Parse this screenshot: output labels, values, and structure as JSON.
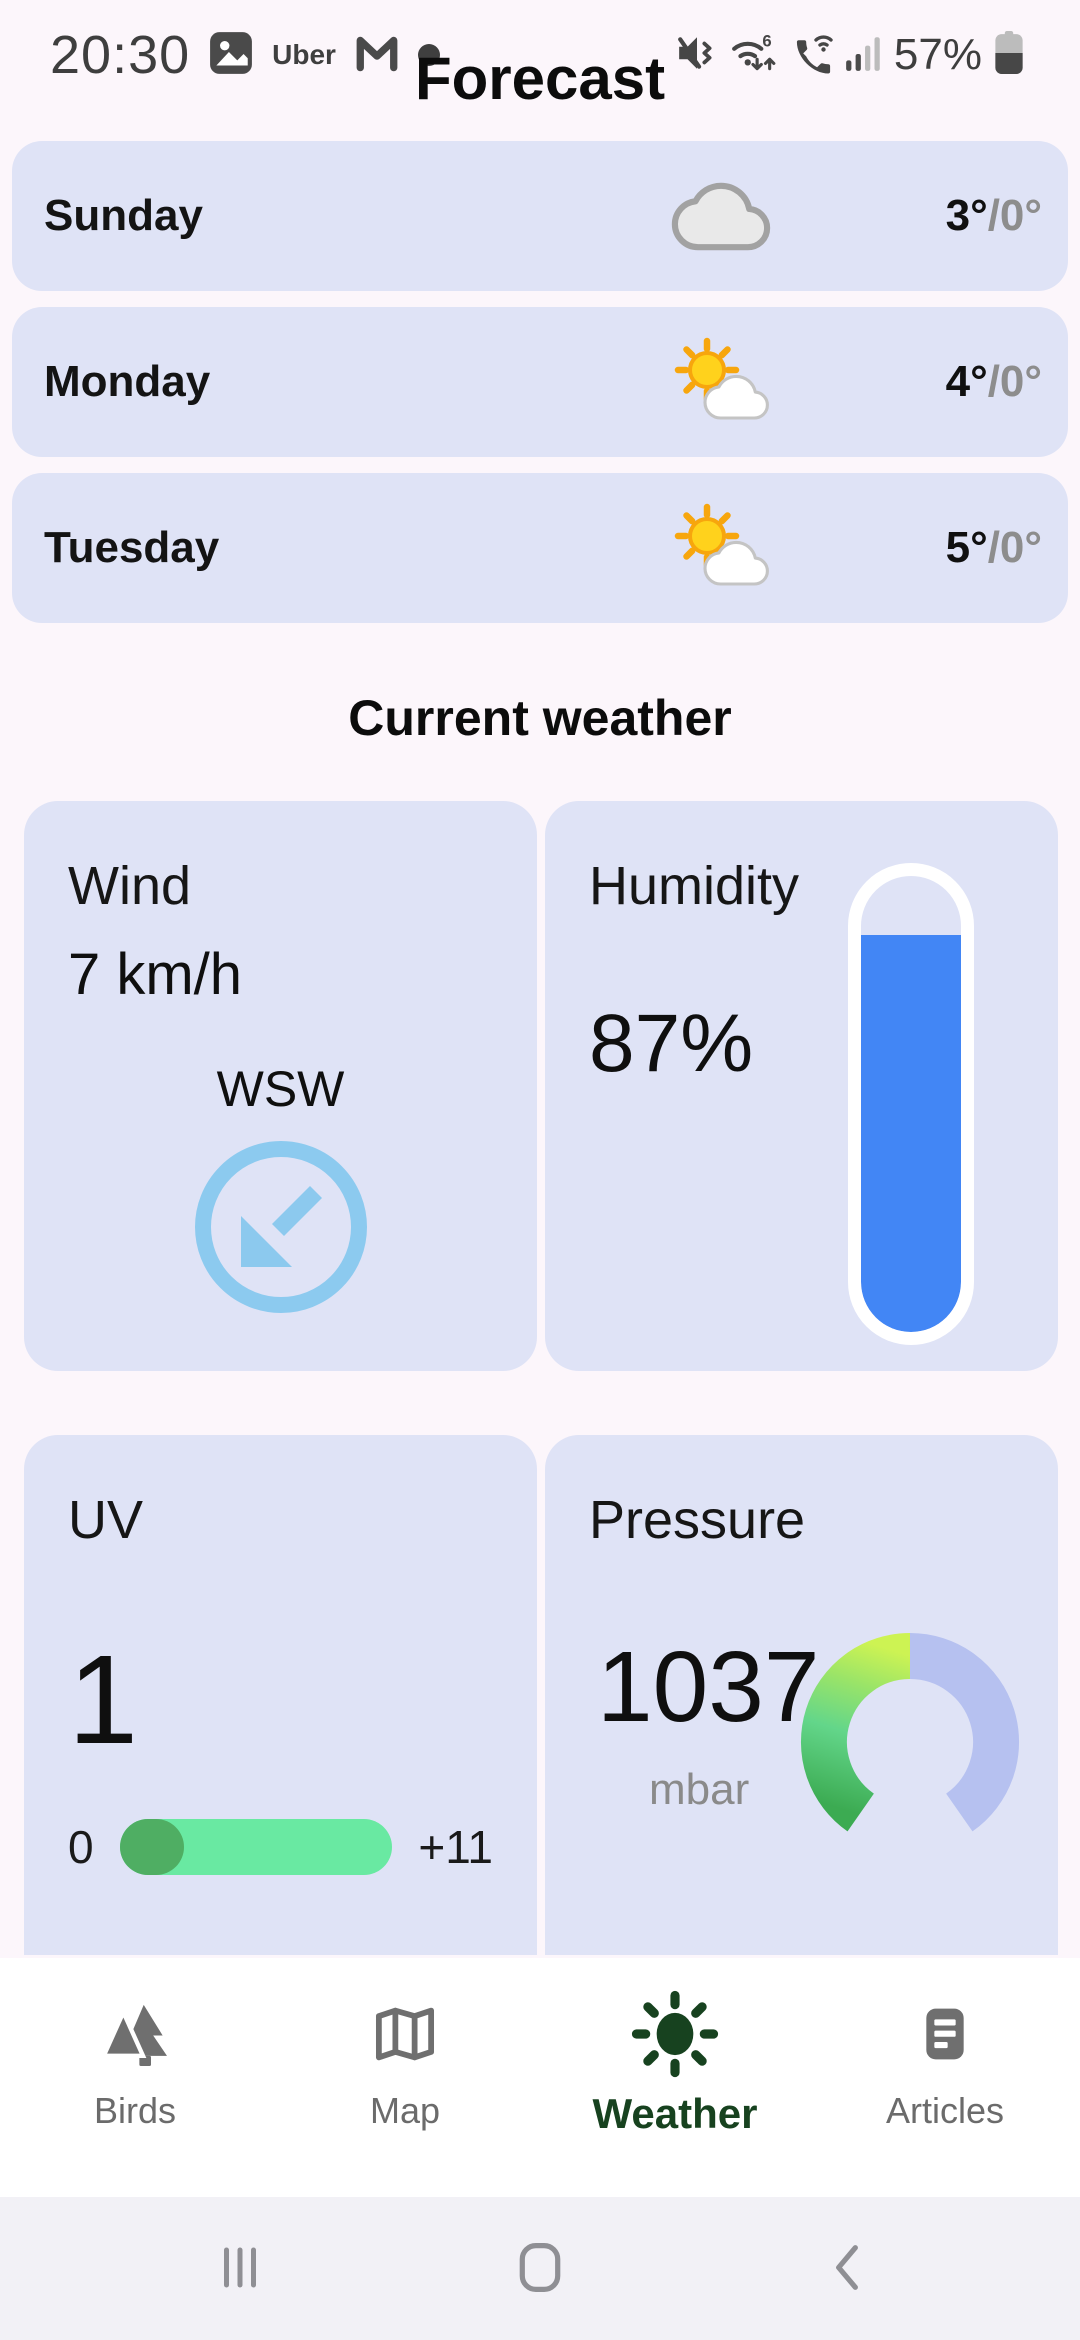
{
  "status_bar": {
    "time": "20:30",
    "uber_label": "Uber",
    "gmail_label": "M",
    "battery_text": "57%",
    "icons_left": [
      "photos-icon",
      "uber-label",
      "gmail-icon",
      "notification-dot"
    ],
    "icons_right": [
      "mute-vibrate-icon",
      "wifi-6-icon",
      "wifi-calling-icon",
      "signal-icon",
      "battery-icon"
    ]
  },
  "header": {
    "title": "Forecast"
  },
  "forecast": [
    {
      "day": "Sunday",
      "icon": "cloudy",
      "high": "3°",
      "low": "/0°"
    },
    {
      "day": "Monday",
      "icon": "partly-sunny",
      "high": "4°",
      "low": "/0°"
    },
    {
      "day": "Tuesday",
      "icon": "partly-sunny",
      "high": "5°",
      "low": "/0°"
    }
  ],
  "current_weather": {
    "section_title": "Current weather",
    "wind": {
      "label": "Wind",
      "value": "7 km/h",
      "direction": "WSW"
    },
    "humidity": {
      "label": "Humidity",
      "value": "87%",
      "fill_percent": 87
    },
    "uv": {
      "label": "UV",
      "value": "1",
      "scale_min": "0",
      "scale_max": "+11"
    },
    "pressure": {
      "label": "Pressure",
      "value": "1037",
      "unit": "mbar"
    }
  },
  "bottom_nav": {
    "items": [
      {
        "label": "Birds",
        "icon": "forest-icon",
        "active": false
      },
      {
        "label": "Map",
        "icon": "map-icon",
        "active": false
      },
      {
        "label": "Weather",
        "icon": "sun-icon",
        "active": true
      },
      {
        "label": "Articles",
        "icon": "article-icon",
        "active": false
      }
    ]
  },
  "system_nav": {
    "icons": [
      "recents-icon",
      "home-icon",
      "back-icon"
    ]
  },
  "colors": {
    "page_bg": "#fcf6fb",
    "card_bg": "#dfe3f6",
    "humidity_blue": "#4286f5",
    "wind_blue": "#8ccaef",
    "uv_track_green": "#69e9a2",
    "uv_thumb_green": "#4fae63",
    "pressure_green": "#3cab52",
    "pressure_yellow": "#cdf353",
    "pressure_lavender": "#b6c1f0",
    "nav_active_green": "#17421f",
    "temp_low_gray": "#8d8d8d"
  }
}
